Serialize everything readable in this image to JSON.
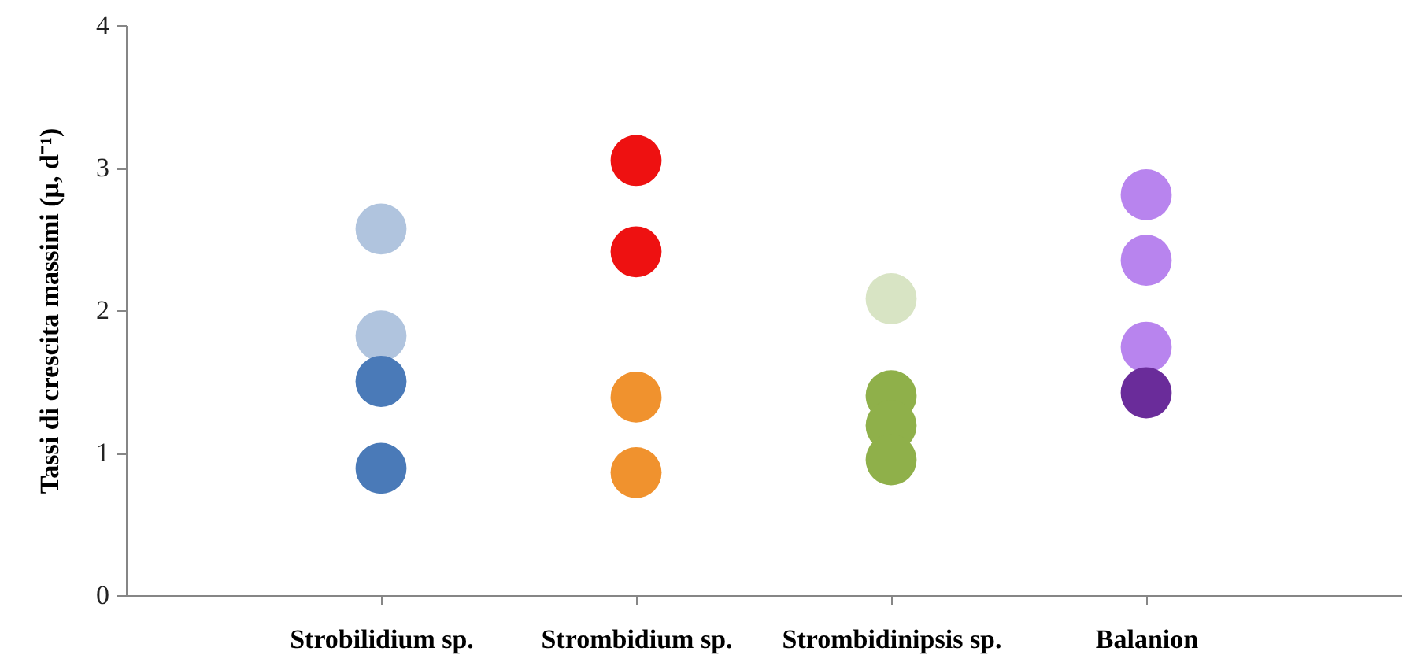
{
  "chart_data": {
    "type": "scatter",
    "ylabel": "Tassi di crescita massimi (μ, d⁻¹)",
    "categories": [
      "Strobilidium sp.",
      "Strombidium sp.",
      "Strombidinipsis sp.",
      "Balanion"
    ],
    "series": [
      {
        "values": [
          2.57,
          3.05,
          2.08,
          2.81
        ],
        "colors": [
          "#b0c4de",
          "#ee1111",
          "#d8e4c4",
          "#b884ee"
        ]
      },
      {
        "values": [
          1.82,
          2.41,
          1.4,
          2.35
        ],
        "colors": [
          "#b0c4de",
          "#ee1111",
          "#8fb04a",
          "#b884ee"
        ]
      },
      {
        "values": [
          1.5,
          1.39,
          1.19,
          1.74
        ],
        "colors": [
          "#4a7ab8",
          "#f0922e",
          "#8fb04a",
          "#b884ee"
        ]
      },
      {
        "values": [
          0.89,
          0.86,
          0.95,
          1.42
        ],
        "colors": [
          "#4a7ab8",
          "#f0922e",
          "#8fb04a",
          "#6a2c9a"
        ]
      }
    ],
    "ylim": [
      0,
      4
    ],
    "yticks": [
      0,
      1,
      2,
      3,
      4
    ],
    "grid": false,
    "marker": "circle"
  }
}
